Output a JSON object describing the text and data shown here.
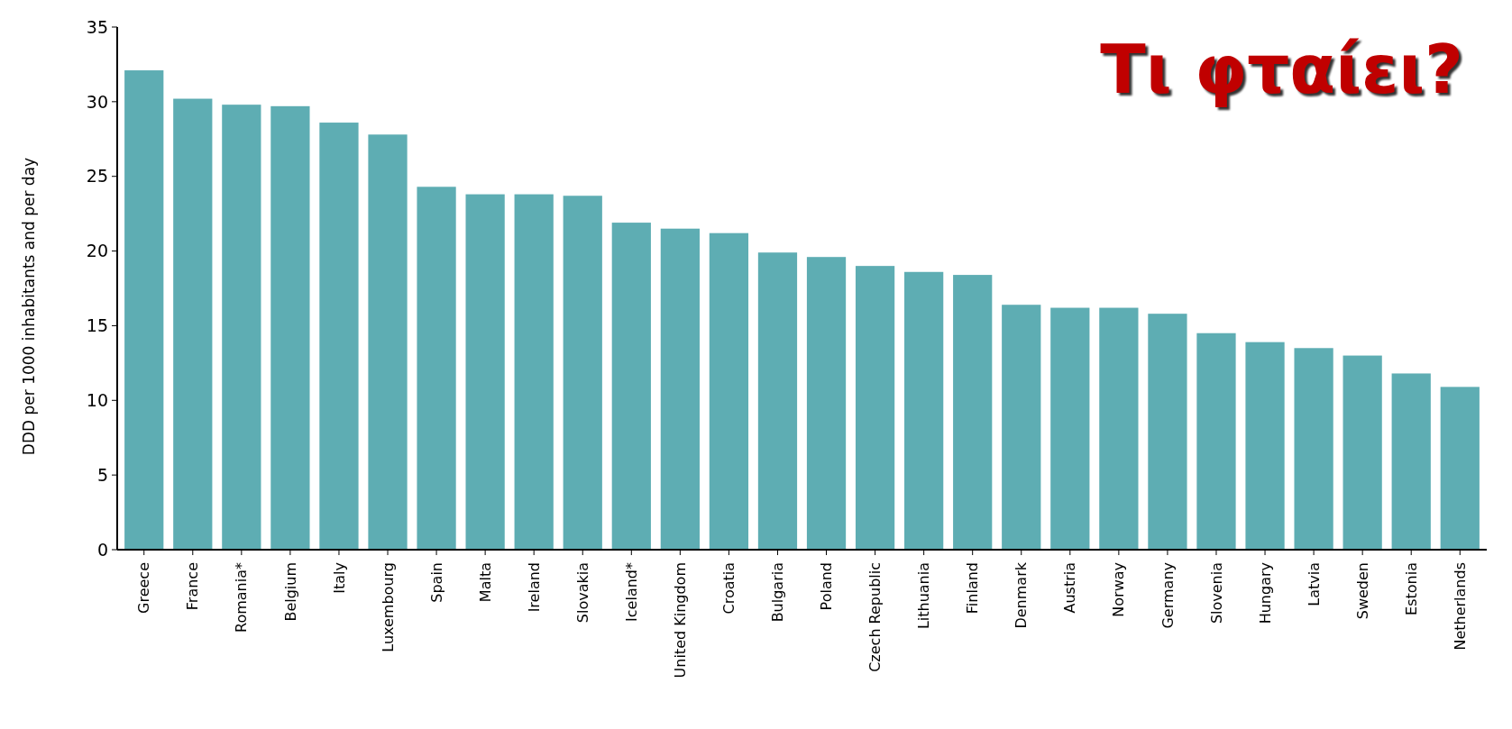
{
  "chart_data": {
    "type": "bar",
    "title": "Τι φταίει?",
    "ylabel": "DDD per 1000 inhabitants and per day",
    "categories": [
      "Greece",
      "France",
      "Romania*",
      "Belgium",
      "Italy",
      "Luxembourg",
      "Spain",
      "Malta",
      "Ireland",
      "Slovakia",
      "Iceland*",
      "United Kingdom",
      "Croatia",
      "Bulgaria",
      "Poland",
      "Czech Republic",
      "Lithuania",
      "Finland",
      "Denmark",
      "Austria",
      "Norway",
      "Germany",
      "Slovenia",
      "Hungary",
      "Latvia",
      "Sweden",
      "Estonia",
      "Netherlands"
    ],
    "values": [
      32.1,
      30.2,
      29.8,
      29.7,
      28.6,
      27.8,
      24.3,
      23.8,
      23.8,
      23.7,
      21.9,
      21.5,
      21.2,
      19.9,
      19.6,
      19.0,
      18.6,
      18.4,
      16.4,
      16.2,
      16.2,
      15.8,
      14.5,
      13.9,
      13.5,
      13.0,
      11.8,
      10.9
    ],
    "color": "#5eadb3",
    "ylim": [
      0,
      35
    ],
    "yticks": [
      0,
      5,
      10,
      15,
      20,
      25,
      30,
      35
    ],
    "grid": false
  }
}
